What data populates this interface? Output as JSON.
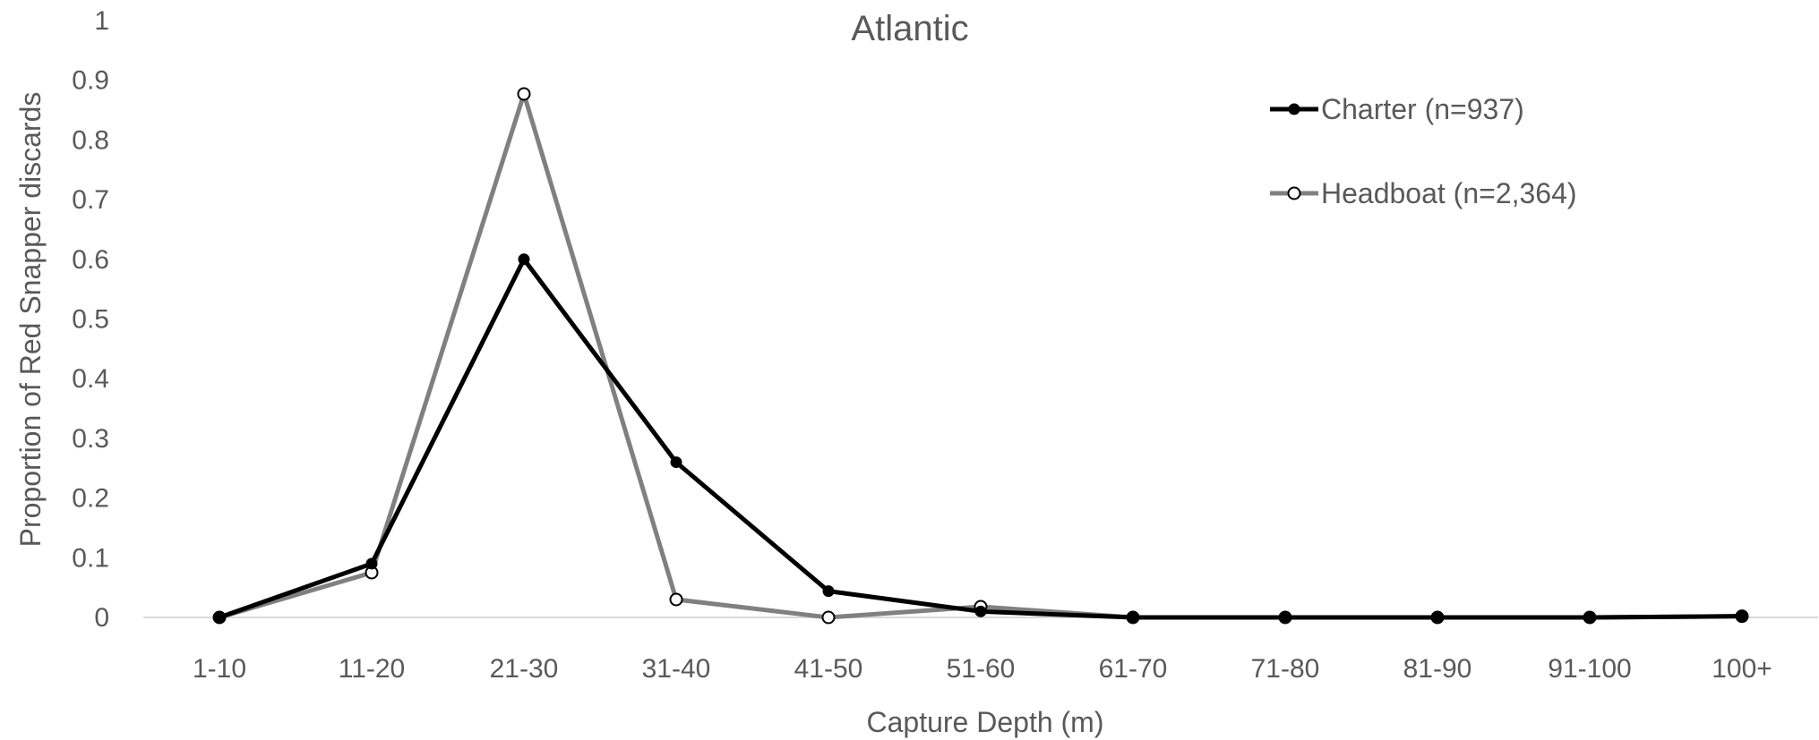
{
  "chart_data": {
    "type": "line",
    "title": "Atlantic",
    "xlabel": "Capture Depth (m)",
    "ylabel": "Proportion of Red Snapper discards",
    "categories": [
      "1-10",
      "11-20",
      "21-30",
      "31-40",
      "41-50",
      "51-60",
      "61-70",
      "71-80",
      "81-90",
      "91-100",
      "100+"
    ],
    "ylim": [
      0,
      1
    ],
    "yticks": [
      "0",
      "0.1",
      "0.2",
      "0.3",
      "0.4",
      "0.5",
      "0.6",
      "0.7",
      "0.8",
      "0.9",
      "1"
    ],
    "grid": false,
    "legend_position": "top-right",
    "series": [
      {
        "name": "Charter (n=937)",
        "color": "#000000",
        "marker": "filled-circle",
        "values": [
          0,
          0.09,
          0.6,
          0.26,
          0.044,
          0.01,
          0,
          0,
          0,
          0,
          0.002
        ]
      },
      {
        "name": "Headboat (n=2,364)",
        "color": "#808080",
        "marker": "open-circle",
        "values": [
          0,
          0.075,
          0.877,
          0.03,
          0,
          0.018,
          0,
          0,
          0,
          0,
          0.002
        ]
      }
    ]
  }
}
